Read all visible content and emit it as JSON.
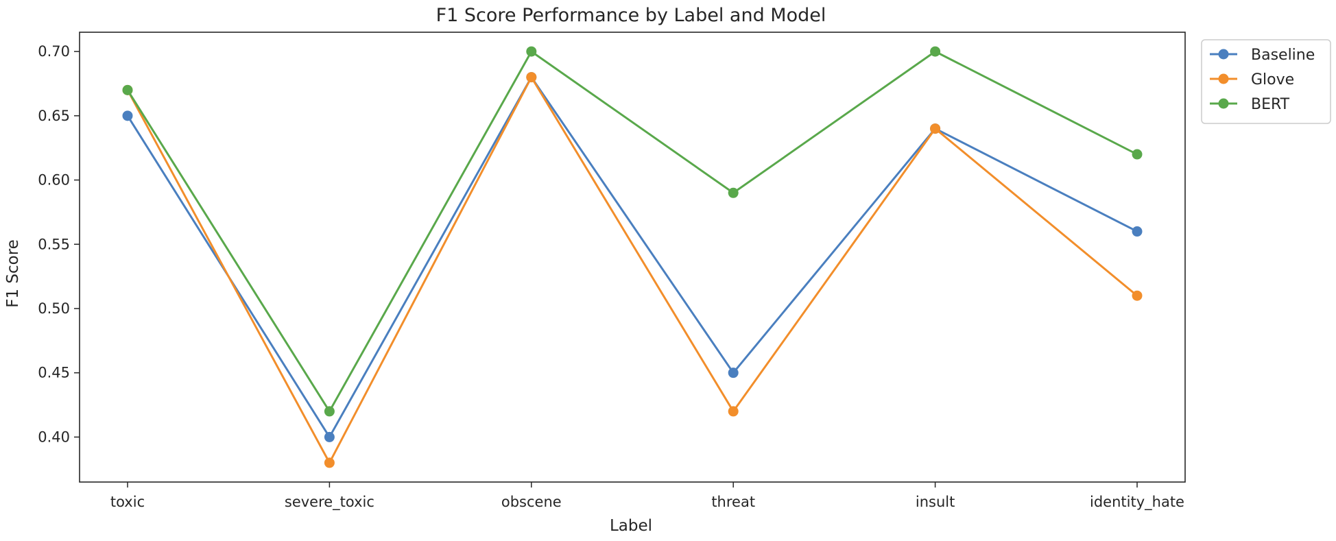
{
  "chart_data": {
    "type": "line",
    "title": "F1 Score Performance by Label and Model",
    "xlabel": "Label",
    "ylabel": "F1 Score",
    "categories": [
      "toxic",
      "severe_toxic",
      "obscene",
      "threat",
      "insult",
      "identity_hate"
    ],
    "ylim": [
      0.365,
      0.715
    ],
    "yticks": [
      0.4,
      0.45,
      0.5,
      0.55,
      0.6,
      0.65,
      0.7
    ],
    "ytick_labels": [
      "0.40",
      "0.45",
      "0.50",
      "0.55",
      "0.60",
      "0.65",
      "0.70"
    ],
    "grid": false,
    "legend_position": "outside-top-right",
    "series": [
      {
        "name": "Baseline",
        "color": "#4a7fbf",
        "values": [
          0.65,
          0.4,
          0.68,
          0.45,
          0.64,
          0.56
        ]
      },
      {
        "name": "Glove",
        "color": "#f28e2b",
        "values": [
          0.67,
          0.38,
          0.68,
          0.42,
          0.64,
          0.51
        ]
      },
      {
        "name": "BERT",
        "color": "#59a84b",
        "values": [
          0.67,
          0.42,
          0.7,
          0.59,
          0.7,
          0.62
        ]
      }
    ]
  }
}
